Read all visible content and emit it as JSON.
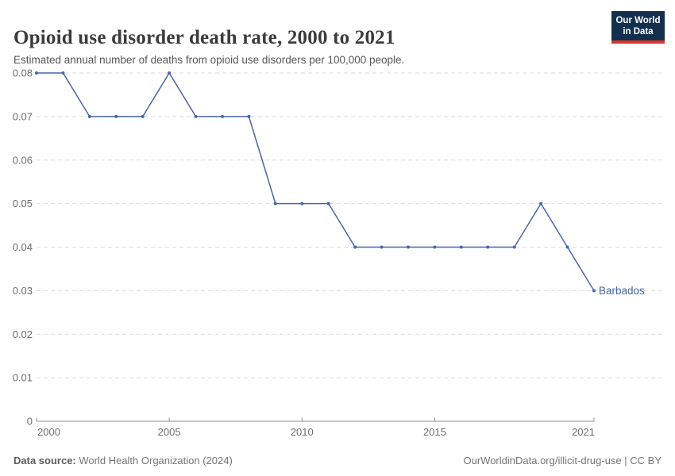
{
  "header": {
    "title": "Opioid use disorder death rate, 2000 to 2021",
    "subtitle": "Estimated annual number of deaths from opioid use disorders per 100,000 people.",
    "logo": {
      "line1": "Our World",
      "line2": "in Data",
      "bg_color": "#12304e",
      "accent_color": "#dc352c"
    }
  },
  "chart_data": {
    "type": "line",
    "title": "Opioid use disorder death rate, 2000 to 2021",
    "xlabel": "",
    "ylabel": "",
    "xlim": [
      2000,
      2021
    ],
    "ylim": [
      0,
      0.08
    ],
    "grid": "horizontal-dashed",
    "legend_position": "end-of-line-label",
    "x": [
      2000,
      2001,
      2002,
      2003,
      2004,
      2005,
      2006,
      2007,
      2008,
      2009,
      2010,
      2011,
      2012,
      2013,
      2014,
      2015,
      2016,
      2017,
      2018,
      2019,
      2020,
      2021
    ],
    "series": [
      {
        "name": "Barbados",
        "color": "#4766a8",
        "values": [
          0.08,
          0.08,
          0.07,
          0.07,
          0.07,
          0.08,
          0.07,
          0.07,
          0.07,
          0.05,
          0.05,
          0.05,
          0.04,
          0.04,
          0.04,
          0.04,
          0.04,
          0.04,
          0.04,
          0.05,
          0.04,
          0.03
        ]
      }
    ],
    "yticks": [
      {
        "value": 0,
        "label": "0"
      },
      {
        "value": 0.01,
        "label": "0.01"
      },
      {
        "value": 0.02,
        "label": "0.02"
      },
      {
        "value": 0.03,
        "label": "0.03"
      },
      {
        "value": 0.04,
        "label": "0.04"
      },
      {
        "value": 0.05,
        "label": "0.05"
      },
      {
        "value": 0.06,
        "label": "0.06"
      },
      {
        "value": 0.07,
        "label": "0.07"
      },
      {
        "value": 0.08,
        "label": "0.08"
      }
    ],
    "xticks": [
      {
        "value": 2000,
        "label": "2000",
        "anchor": "start"
      },
      {
        "value": 2005,
        "label": "2005",
        "anchor": "middle"
      },
      {
        "value": 2010,
        "label": "2010",
        "anchor": "middle"
      },
      {
        "value": 2015,
        "label": "2015",
        "anchor": "middle"
      },
      {
        "value": 2021,
        "label": "2021",
        "anchor": "end"
      }
    ],
    "colors": {
      "gridline": "#dcdcdc",
      "axis": "#8f8f8f",
      "tick_label": "#6e6e6e"
    }
  },
  "footer": {
    "datasource_label": "Data source:",
    "datasource_value": "World Health Organization (2024)",
    "credit": "OurWorldinData.org/illicit-drug-use | CC BY"
  }
}
